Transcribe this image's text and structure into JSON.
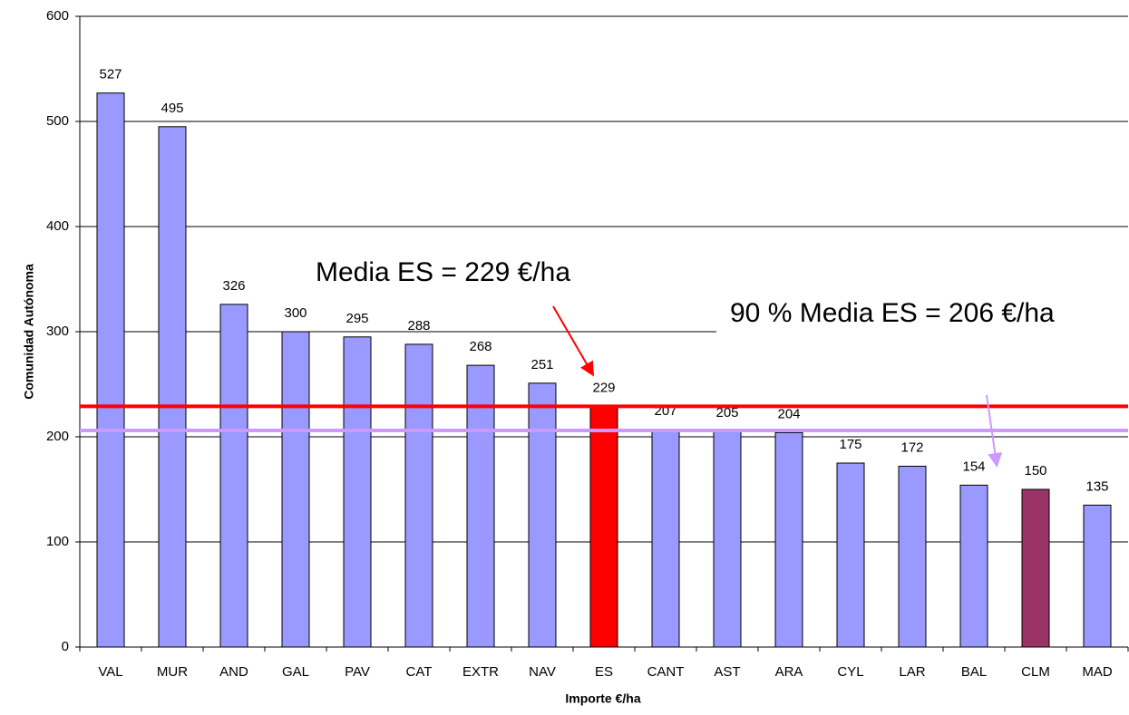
{
  "chart_data": {
    "type": "bar",
    "xlabel": "Importe €/ha",
    "ylabel": "Comunidad Autónoma",
    "categories": [
      "VAL",
      "MUR",
      "AND",
      "GAL",
      "PAV",
      "CAT",
      "EXTR",
      "NAV",
      "ES",
      "CANT",
      "AST",
      "ARA",
      "CYL",
      "LAR",
      "BAL",
      "CLM",
      "MAD"
    ],
    "values": [
      527,
      495,
      326,
      300,
      295,
      288,
      268,
      251,
      229,
      207,
      205,
      204,
      175,
      172,
      154,
      150,
      135
    ],
    "colors": [
      "#9999ff",
      "#9999ff",
      "#9999ff",
      "#9999ff",
      "#9999ff",
      "#9999ff",
      "#9999ff",
      "#9999ff",
      "#ff0000",
      "#9999ff",
      "#9999ff",
      "#9999ff",
      "#9999ff",
      "#9999ff",
      "#9999ff",
      "#993366",
      "#9999ff"
    ],
    "ylim": [
      0,
      600
    ],
    "yticks": [
      0,
      100,
      200,
      300,
      400,
      500,
      600
    ],
    "grid": true,
    "reference_lines": [
      {
        "value": 229,
        "color": "#ff0000"
      },
      {
        "value": 206,
        "color": "#cc99ff"
      }
    ],
    "annotations": [
      "Media ES = 229 €/ha",
      "90 % Media ES = 206 €/ha"
    ]
  }
}
